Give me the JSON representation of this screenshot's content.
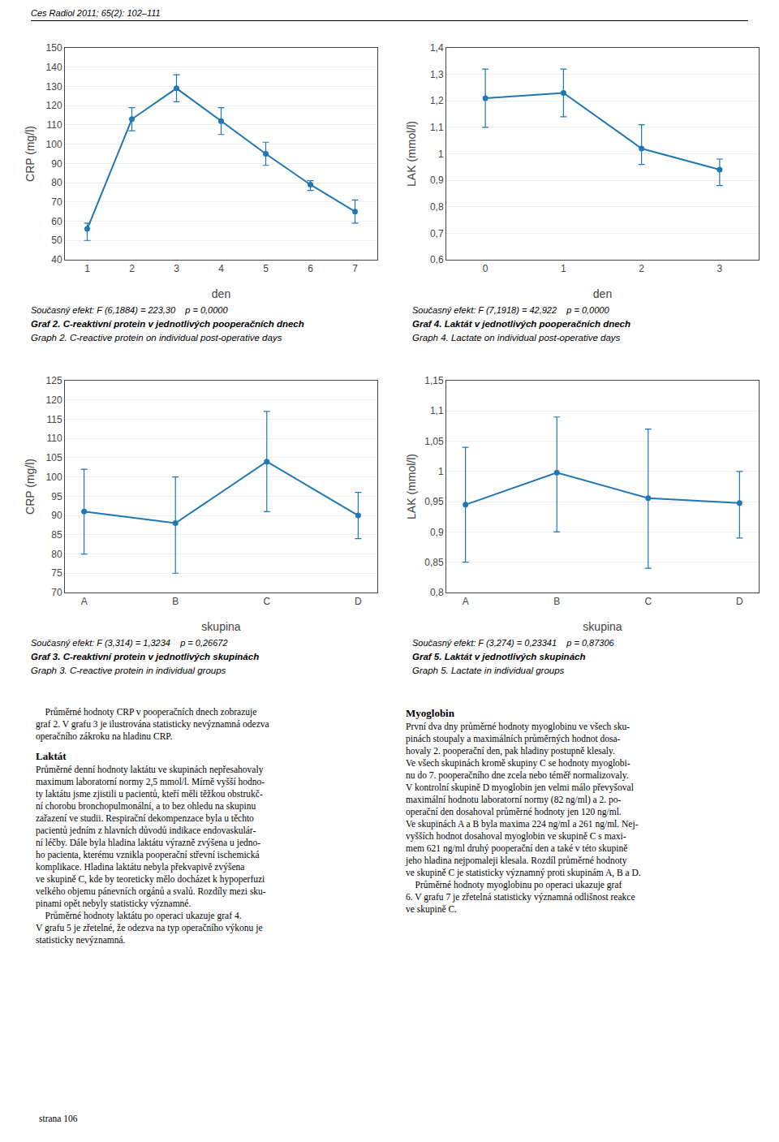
{
  "page_header": "Ces Radiol 2011; 65(2): 102–111",
  "chart_data": [
    {
      "type": "line",
      "title": "Graf 2. C-reaktivní protein v jednotlivých pooperačních dnech",
      "subtitle": "Graph 2. C-reactive protein on individual post-operative days",
      "annotations": [
        "Současný efekt: F (6,1884) = 223,30    p = 0,0000"
      ],
      "xlabel": "den",
      "ylabel": "CRP (mg/l)",
      "x": [
        1,
        2,
        3,
        4,
        5,
        6,
        7
      ],
      "values": [
        56,
        113,
        129,
        112,
        95,
        79,
        65
      ],
      "error_upper": [
        59,
        119,
        136,
        119,
        101,
        81,
        71
      ],
      "error_lower": [
        50,
        107,
        122,
        105,
        89,
        76,
        59
      ],
      "xlim": [
        0.5,
        7.5
      ],
      "xticks": [
        1,
        2,
        3,
        4,
        5,
        6,
        7
      ],
      "ylim": [
        40,
        150
      ],
      "yticks": [
        40,
        50,
        60,
        70,
        80,
        90,
        100,
        110,
        120,
        130,
        140,
        150
      ],
      "grid": true,
      "marker": "circle"
    },
    {
      "type": "line",
      "title": "Graf 4. Laktát v jednotlivých pooperačních dnech",
      "subtitle": "Graph 4. Lactate on individual post-operative days",
      "annotations": [
        "Současný efekt: F (7,1918) = 42,922    p = 0,0000"
      ],
      "xlabel": "den",
      "ylabel": "LAK (mmol/l)",
      "x": [
        0,
        1,
        2,
        3
      ],
      "values": [
        1.21,
        1.23,
        1.02,
        0.94
      ],
      "error_upper": [
        1.32,
        1.32,
        1.11,
        0.98
      ],
      "error_lower": [
        1.1,
        1.14,
        0.96,
        0.88
      ],
      "xlim": [
        -0.5,
        3.5
      ],
      "xticks": [
        0,
        1,
        2,
        3
      ],
      "ylim": [
        0.6,
        1.4
      ],
      "yticks": [
        {
          "value": 0.6,
          "label": "0,6"
        },
        {
          "value": 0.7,
          "label": "0,7"
        },
        {
          "value": 0.8,
          "label": "0,8"
        },
        {
          "value": 0.9,
          "label": "0,9"
        },
        1,
        {
          "value": 1.1,
          "label": "1,1"
        },
        {
          "value": 1.2,
          "label": "1,2"
        },
        {
          "value": 1.3,
          "label": "1,3"
        },
        {
          "value": 1.4,
          "label": "1,4"
        }
      ],
      "grid": true,
      "marker": "circle"
    },
    {
      "type": "line",
      "title": "Graf 3. C-reaktivní protein v jednotlivých skupinách",
      "subtitle": "Graph 3. C-reactive protein in individual groups",
      "annotations": [
        "Současný efekt: F (3,314) = 1,3234    p = 0,26672"
      ],
      "xlabel": "skupina",
      "ylabel": "CRP (mg/l)",
      "categories": [
        "A",
        "B",
        "C",
        "D"
      ],
      "values": [
        91,
        88,
        104,
        90
      ],
      "error_upper": [
        102,
        100,
        117,
        96
      ],
      "error_lower": [
        80,
        75,
        91,
        84
      ],
      "ylim": [
        70,
        125
      ],
      "yticks": [
        70,
        75,
        80,
        85,
        90,
        95,
        100,
        105,
        110,
        115,
        120,
        125
      ],
      "grid": true,
      "marker": "circle"
    },
    {
      "type": "line",
      "title": "Graf 5. Laktát v jednotlivých skupinách",
      "subtitle": "Graph 5. Lactate in individual groups",
      "annotations": [
        "Současný efekt: F (3,274) = 0,23341    p = 0,87306"
      ],
      "xlabel": "skupina",
      "ylabel": "LAK (mmol/l)",
      "categories": [
        "A",
        "B",
        "C",
        "D"
      ],
      "values": [
        0.945,
        0.998,
        0.956,
        0.948
      ],
      "error_upper": [
        1.04,
        1.09,
        1.07,
        1.0
      ],
      "error_lower": [
        0.85,
        0.9,
        0.84,
        0.89
      ],
      "ylim": [
        0.8,
        1.15
      ],
      "yticks": [
        {
          "value": 0.8,
          "label": "0,8"
        },
        {
          "value": 0.85,
          "label": "0,85"
        },
        {
          "value": 0.9,
          "label": "0,9"
        },
        {
          "value": 0.95,
          "label": "0,95"
        },
        1,
        {
          "value": 1.05,
          "label": "1,05"
        },
        {
          "value": 1.1,
          "label": "1,1"
        },
        {
          "value": 1.15,
          "label": "1,15"
        }
      ],
      "grid": true,
      "marker": "circle"
    }
  ],
  "text_columns": [
    [
      {
        "lines": [
          "    Průměrné hodnoty CRP v pooperačních dnech zobrazuje",
          "graf 2. V grafu 3 je ilustrována statisticky nevýznamná odezva",
          "operačního zákroku na hladinu CRP."
        ]
      },
      {
        "heading": "Laktát",
        "lines": [
          "Průměrné denní hodnoty laktátu ve skupinách nepřesahovaly",
          "maximum laboratorní normy 2,5 mmol/l. Mírně vyšší hodno-",
          "ty laktátu jsme zjistili u pacientů, kteří měli těžkou obstrukč-",
          "ní chorobu bronchopulmonální, a to bez ohledu na skupinu",
          "zařazení ve studii. Respirační dekompenzace byla u těchto",
          "pacientů jedním z hlavních důvodů indikace endovaskulár-",
          "ní léčby. Dále byla hladina laktátu výrazně zvýšena u jedno-",
          "ho pacienta, kterému vznikla pooperační střevní ischemická",
          "komplikace. Hladina laktátu nebyla překvapivě zvýšena",
          "ve skupině C, kde by teoreticky mělo docházet k hypoperfuzi",
          "velkého objemu pánevních orgánů a svalů. Rozdíly mezi sku-",
          "pinami opět nebyly statisticky významné.",
          "    Průměrné hodnoty laktátu po operaci ukazuje graf 4.",
          "V grafu 5 je zřetelné, že odezva na typ operačního výkonu je",
          "statisticky nevýznamná."
        ]
      }
    ],
    [
      {
        "heading": "Myoglobin",
        "lines": [
          "První dva dny průměrné hodnoty myoglobinu ve všech sku-",
          "pinách stoupaly a maximálních průměrných hodnot dosa-",
          "hovaly 2. pooperační den, pak hladiny postupně klesaly.",
          "Ve všech skupinách kromě skupiny C se hodnoty myoglobi-",
          "nu do 7. pooperačního dne zcela nebo téměř normalizovaly.",
          "V kontrolní skupině D myoglobin jen velmi málo převyšoval",
          "maximální hodnotu laboratorní normy (82 ng/ml) a 2. po-",
          "operační den dosahoval průměrné hodnoty jen 120 ng/ml.",
          "Ve skupinách A a B byla maxima 224 ng/ml a 261 ng/ml. Nej-",
          "vyšších hodnot dosahoval myoglobin ve skupině C s maxi-",
          "mem 621 ng/ml druhý pooperační den a také v této skupině",
          "jeho hladina nejpomaleji klesala. Rozdíl průměrné hodnoty",
          "ve skupině C je statisticky významný proti skupinám A, B a D.",
          "    Průměrné hodnoty myoglobinu po operaci ukazuje graf",
          "6. V grafu 7 je zřetelná statisticky významná odlišnost reakce",
          "ve skupině C."
        ]
      }
    ]
  ],
  "footer": "strana 106"
}
